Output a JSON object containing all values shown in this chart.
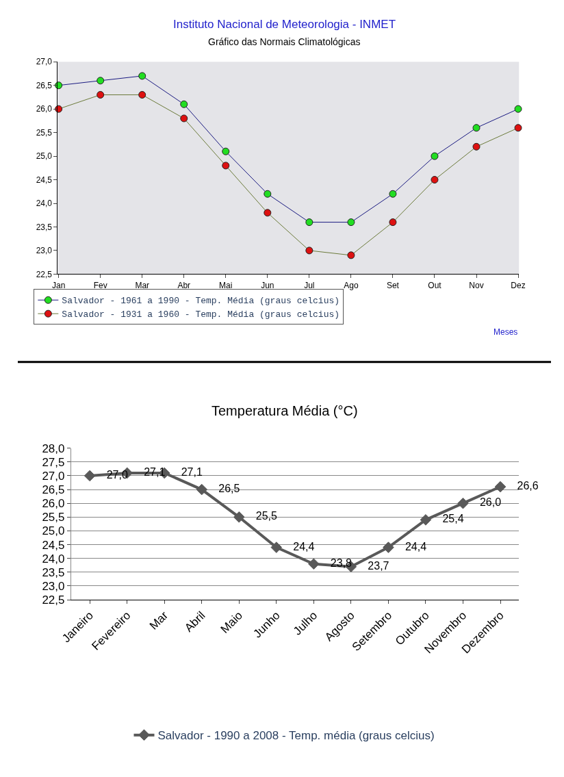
{
  "chart_data": [
    {
      "type": "line",
      "title": "Instituto Nacional de Meteorologia - INMET",
      "subtitle": "Gráfico das Normais Climatológicas",
      "xlabel": "Meses",
      "categories": [
        "Jan",
        "Fev",
        "Mar",
        "Abr",
        "Mai",
        "Jun",
        "Jul",
        "Ago",
        "Set",
        "Out",
        "Nov",
        "Dez"
      ],
      "series": [
        {
          "name": "Salvador - 1961 a 1990 - Temp. Média (graus celcius)",
          "color": "#22dd22",
          "values": [
            26.5,
            26.6,
            26.7,
            26.1,
            25.1,
            24.2,
            23.6,
            23.6,
            24.2,
            25.0,
            25.6,
            26.0
          ]
        },
        {
          "name": "Salvador - 1931 a 1960 - Temp. Média (graus celcius)",
          "color": "#dd1111",
          "values": [
            26.0,
            26.3,
            26.3,
            25.8,
            24.8,
            23.8,
            23.0,
            22.9,
            23.6,
            24.5,
            25.2,
            25.6
          ]
        }
      ],
      "ylim": [
        22.5,
        27.0
      ],
      "yticks": [
        {
          "value": 22.5,
          "label": "22,5"
        },
        {
          "value": 23.0,
          "label": "23,0"
        },
        {
          "value": 23.5,
          "label": "23,5"
        },
        {
          "value": 24.0,
          "label": "24,0"
        },
        {
          "value": 24.5,
          "label": "24,5"
        },
        {
          "value": 25.0,
          "label": "25,0"
        },
        {
          "value": 25.5,
          "label": "25,5"
        },
        {
          "value": 26.0,
          "label": "26,0"
        },
        {
          "value": 26.5,
          "label": "26,5"
        },
        {
          "value": 27.0,
          "label": "27,0"
        }
      ],
      "marker": "circle",
      "legend": "bottom left",
      "grid": false
    },
    {
      "type": "line",
      "title": "Temperatura Média (°C)",
      "categories": [
        "Janeiro",
        "Fevereiro",
        "Mar",
        "Abril",
        "Maio",
        "Junho",
        "Julho",
        "Agosto",
        "Setembro",
        "Outubro",
        "Novembro",
        "Dezembro"
      ],
      "series": [
        {
          "name": "Salvador - 1990 a 2008 - Temp. média (graus celcius)",
          "color": "#595959",
          "values": [
            27.0,
            27.1,
            27.1,
            26.5,
            25.5,
            24.4,
            23.8,
            23.7,
            24.4,
            25.4,
            26.0,
            26.6
          ],
          "value_labels": [
            "27,0",
            "27,1",
            "27,1",
            "26,5",
            "25,5",
            "24,4",
            "23,8",
            "23,7",
            "24,4",
            "25,4",
            "26,0",
            "26,6"
          ]
        }
      ],
      "ylim": [
        22.5,
        28.0
      ],
      "yticks": [
        {
          "value": 22.5,
          "label": "22,5"
        },
        {
          "value": 23.0,
          "label": "23,0"
        },
        {
          "value": 23.5,
          "label": "23,5"
        },
        {
          "value": 24.0,
          "label": "24,0"
        },
        {
          "value": 24.5,
          "label": "24,5"
        },
        {
          "value": 25.0,
          "label": "25,0"
        },
        {
          "value": 25.5,
          "label": "25,5"
        },
        {
          "value": 26.0,
          "label": "26,0"
        },
        {
          "value": 26.5,
          "label": "26,5"
        },
        {
          "value": 27.0,
          "label": "27,0"
        },
        {
          "value": 27.5,
          "label": "27,5"
        },
        {
          "value": 28.0,
          "label": "28,0"
        }
      ],
      "marker": "diamond",
      "legend": "bottom",
      "grid": "y"
    }
  ]
}
